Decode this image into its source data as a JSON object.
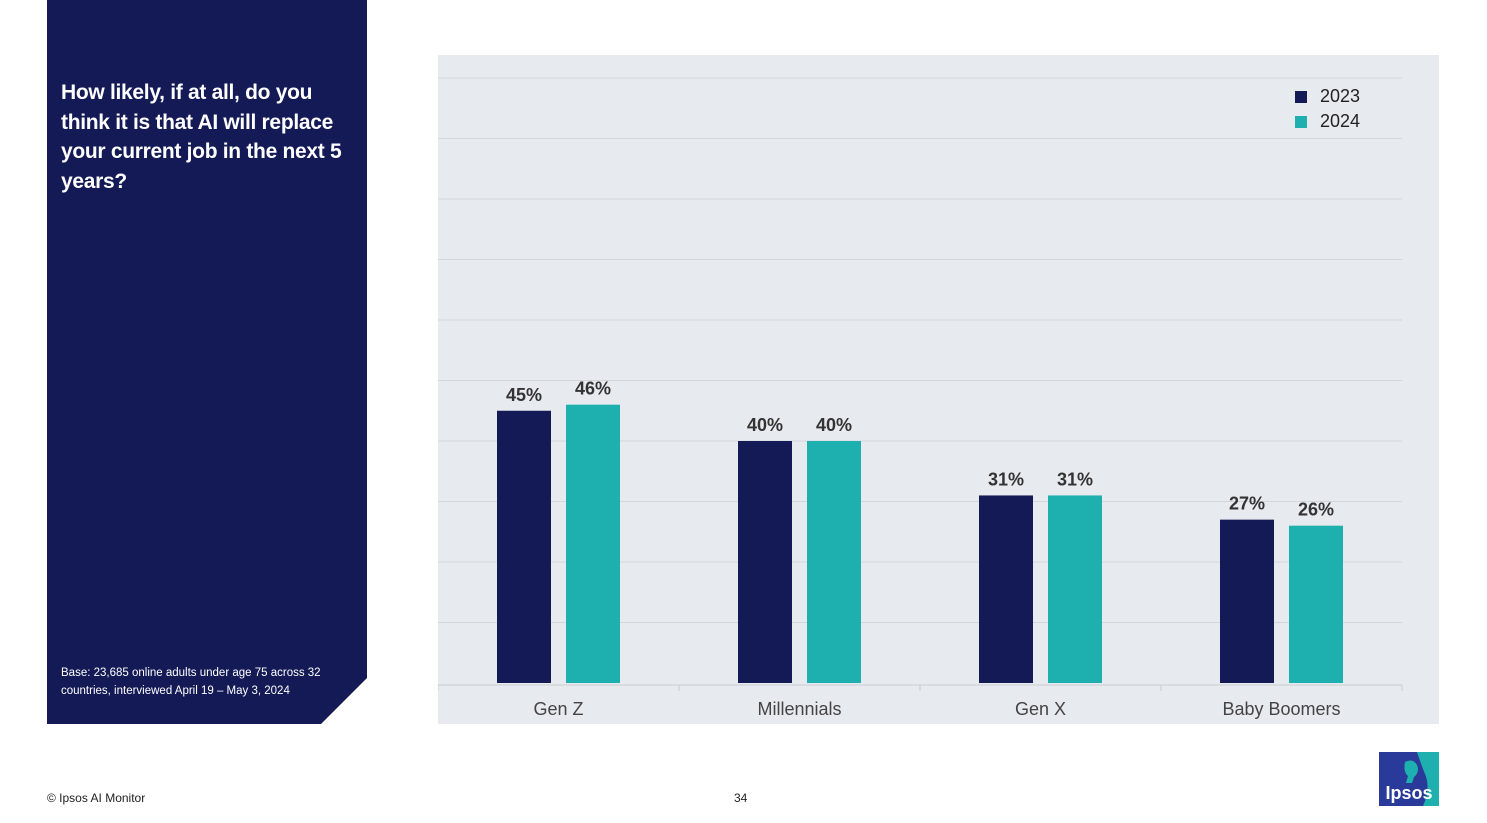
{
  "side_panel": {
    "question": "How likely, if at all, do you think it is that AI will replace your current job in the next 5 years?",
    "base_note": "Base: 23,685 online adults under age 75 across 32 countries, interviewed April 19 – May 3, 2024"
  },
  "footer": {
    "copyright": "© Ipsos AI Monitor",
    "page_number": "34",
    "logo_text": "Ipsos"
  },
  "colors": {
    "panel": "#141a56",
    "series_2023": "#141a56",
    "series_2024": "#1eb0ae",
    "chart_background": "#e7eaee",
    "logo": "#2a3a9a"
  },
  "chart_data": {
    "type": "bar",
    "categories": [
      "Gen Z",
      "Millennials",
      "Gen X",
      "Baby Boomers"
    ],
    "series": [
      {
        "name": "2023",
        "values": [
          45,
          40,
          31,
          27
        ],
        "labels": [
          "45%",
          "40%",
          "31%",
          "27%"
        ],
        "color": "#141a56"
      },
      {
        "name": "2024",
        "values": [
          46,
          40,
          31,
          26
        ],
        "labels": [
          "46%",
          "40%",
          "31%",
          "26%"
        ],
        "color": "#1eb0ae"
      }
    ],
    "ylim": [
      0,
      100
    ],
    "grid": true,
    "legend": "top-right",
    "title": "",
    "xlabel": "",
    "ylabel": ""
  }
}
